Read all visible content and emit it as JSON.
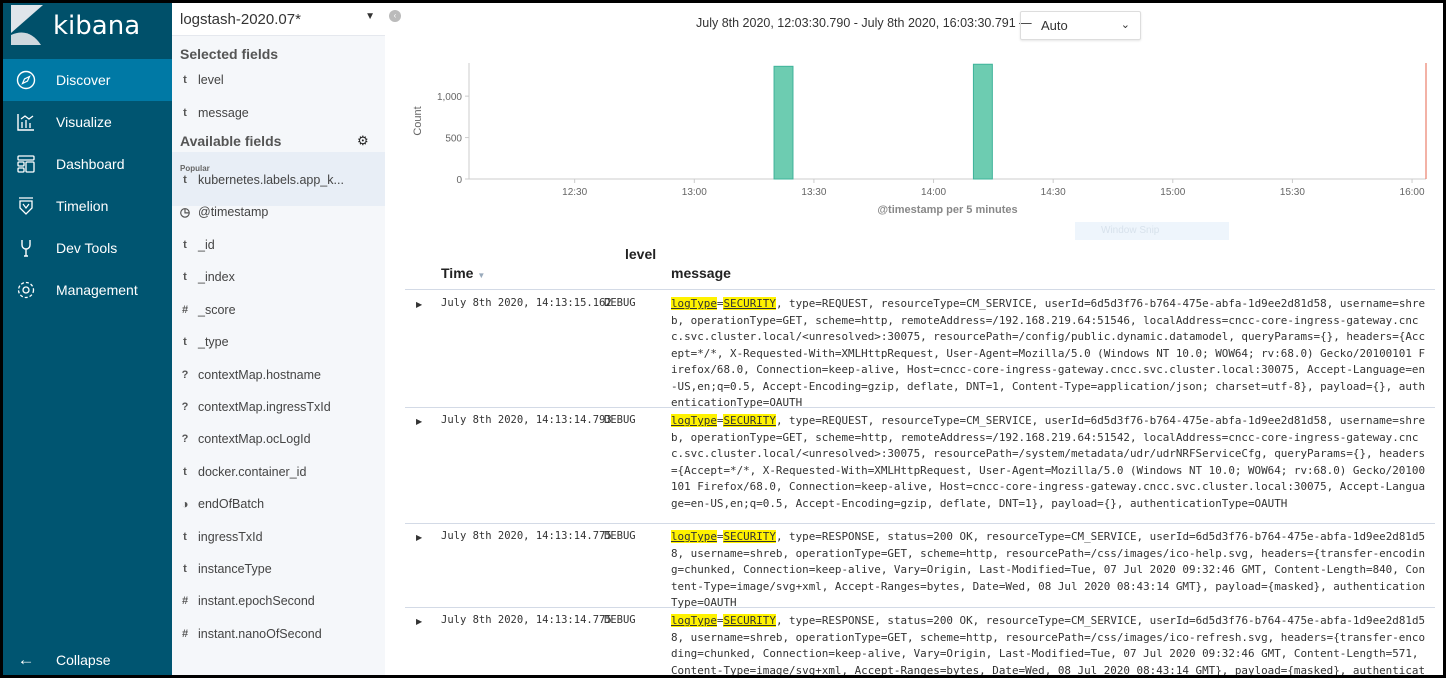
{
  "app": {
    "logo_text": "kibana"
  },
  "nav": {
    "items": [
      {
        "label": "Discover",
        "icon": "compass-icon",
        "active": true
      },
      {
        "label": "Visualize",
        "icon": "visualize-icon"
      },
      {
        "label": "Dashboard",
        "icon": "dashboard-icon"
      },
      {
        "label": "Timelion",
        "icon": "timelion-icon"
      },
      {
        "label": "Dev Tools",
        "icon": "wrench-icon"
      },
      {
        "label": "Management",
        "icon": "gear-icon"
      }
    ],
    "collapse_label": "Collapse"
  },
  "fields": {
    "index_pattern": "logstash-2020.07*",
    "selected_title": "Selected fields",
    "selected": [
      {
        "type": "t",
        "name": "level"
      },
      {
        "type": "t",
        "name": "message"
      }
    ],
    "available_title": "Available fields",
    "popular_label": "Popular",
    "available": [
      {
        "type": "t",
        "name": "kubernetes.labels.app_k..."
      },
      {
        "type": "clock",
        "name": "@timestamp"
      },
      {
        "type": "t",
        "name": "_id"
      },
      {
        "type": "t",
        "name": "_index"
      },
      {
        "type": "#",
        "name": "_score"
      },
      {
        "type": "t",
        "name": "_type"
      },
      {
        "type": "?",
        "name": "contextMap.hostname"
      },
      {
        "type": "?",
        "name": "contextMap.ingressTxId"
      },
      {
        "type": "?",
        "name": "contextMap.ocLogId"
      },
      {
        "type": "t",
        "name": "docker.container_id"
      },
      {
        "type": "bool",
        "name": "endOfBatch"
      },
      {
        "type": "t",
        "name": "ingressTxId"
      },
      {
        "type": "t",
        "name": "instanceType"
      },
      {
        "type": "#",
        "name": "instant.epochSecond"
      },
      {
        "type": "#",
        "name": "instant.nanoOfSecond"
      }
    ]
  },
  "header": {
    "time_range": "July 8th 2020, 12:03:30.790 - July 8th 2020, 16:03:30.791 —",
    "interval": "Auto"
  },
  "chart_data": {
    "type": "bar",
    "xlabel": "@timestamp per 5 minutes",
    "ylabel": "Count",
    "x_ticks": [
      "12:30",
      "13:00",
      "13:30",
      "14:00",
      "14:30",
      "15:00",
      "15:30",
      "16:00"
    ],
    "y_ticks": [
      "0",
      "500",
      "1,000"
    ],
    "xlim": [
      "12:03:30",
      "16:03:30"
    ],
    "ylim": [
      0,
      1400
    ],
    "bucket_minutes": 5,
    "x": [
      "13:20",
      "14:10"
    ],
    "values": [
      1360,
      1385
    ],
    "bar_color": "#6dccb1",
    "now_line_color": "#e7664c"
  },
  "overlay": {
    "snip_label": "Window Snip"
  },
  "table": {
    "headers": {
      "time": "Time",
      "level": "level",
      "message": "message"
    },
    "rows": [
      {
        "time": "July 8th 2020, 14:13:15.162",
        "level": "DEBUG",
        "k": "logType",
        "eq": "=",
        "v": "SECURITY",
        "rest": ", type=REQUEST, resourceType=CM_SERVICE, userId=6d5d3f76-b764-475e-abfa-1d9ee2d81d58, username=shreb, operationType=GET, scheme=http, remoteAddress=/192.168.219.64:51546, localAddress=cncc-core-ingress-gateway.cncc.svc.cluster.local/<unresolved>:30075, resourcePath=/config/public.dynamic.datamodel, queryParams={}, headers={Accept=*/*, X-Requested-With=XMLHttpRequest, User-Agent=Mozilla/5.0 (Windows NT 10.0; WOW64; rv:68.0) Gecko/20100101 Firefox/68.0, Connection=keep-alive, Host=cncc-core-ingress-gateway.cncc.svc.cluster.local:30075, Accept-Language=en-US,en;q=0.5, Accept-Encoding=gzip, deflate, DNT=1, Content-Type=application/json; charset=utf-8}, payload={}, authenticationType=OAUTH"
      },
      {
        "time": "July 8th 2020, 14:13:14.793",
        "level": "DEBUG",
        "k": "logType",
        "eq": "=",
        "v": "SECURITY",
        "rest": ", type=REQUEST, resourceType=CM_SERVICE, userId=6d5d3f76-b764-475e-abfa-1d9ee2d81d58, username=shreb, operationType=GET, scheme=http, remoteAddress=/192.168.219.64:51542, localAddress=cncc-core-ingress-gateway.cncc.svc.cluster.local/<unresolved>:30075, resourcePath=/system/metadata/udr/udrNRFServiceCfg, queryParams={}, headers={Accept=*/*, X-Requested-With=XMLHttpRequest, User-Agent=Mozilla/5.0 (Windows NT 10.0; WOW64; rv:68.0) Gecko/20100101 Firefox/68.0, Connection=keep-alive, Host=cncc-core-ingress-gateway.cncc.svc.cluster.local:30075, Accept-Language=en-US,en;q=0.5, Accept-Encoding=gzip, deflate, DNT=1}, payload={}, authenticationType=OAUTH"
      },
      {
        "time": "July 8th 2020, 14:13:14.775",
        "level": "DEBUG",
        "k": "logType",
        "eq": "=",
        "v": "SECURITY",
        "rest": ", type=RESPONSE, status=200 OK, resourceType=CM_SERVICE, userId=6d5d3f76-b764-475e-abfa-1d9ee2d81d58, username=shreb, operationType=GET, scheme=http, resourcePath=/css/images/ico-help.svg, headers={transfer-encoding=chunked, Connection=keep-alive, Vary=Origin, Last-Modified=Tue, 07 Jul 2020 09:32:46 GMT, Content-Length=840, Content-Type=image/svg+xml, Accept-Ranges=bytes, Date=Wed, 08 Jul 2020 08:43:14 GMT}, payload={masked}, authenticationType=OAUTH"
      },
      {
        "time": "July 8th 2020, 14:13:14.775",
        "level": "DEBUG",
        "k": "logType",
        "eq": "=",
        "v": "SECURITY",
        "rest": ", type=RESPONSE, status=200 OK, resourceType=CM_SERVICE, userId=6d5d3f76-b764-475e-abfa-1d9ee2d81d58, username=shreb, operationType=GET, scheme=http, resourcePath=/css/images/ico-refresh.svg, headers={transfer-encoding=chunked, Connection=keep-alive, Vary=Origin, Last-Modified=Tue, 07 Jul 2020 09:32:46 GMT, Content-Length=571, Content-Type=image/svg+xml, Accept-Ranges=bytes, Date=Wed, 08 Jul 2020 08:43:14 GMT}, payload={masked}, authenticationType=OAUTH"
      }
    ]
  }
}
